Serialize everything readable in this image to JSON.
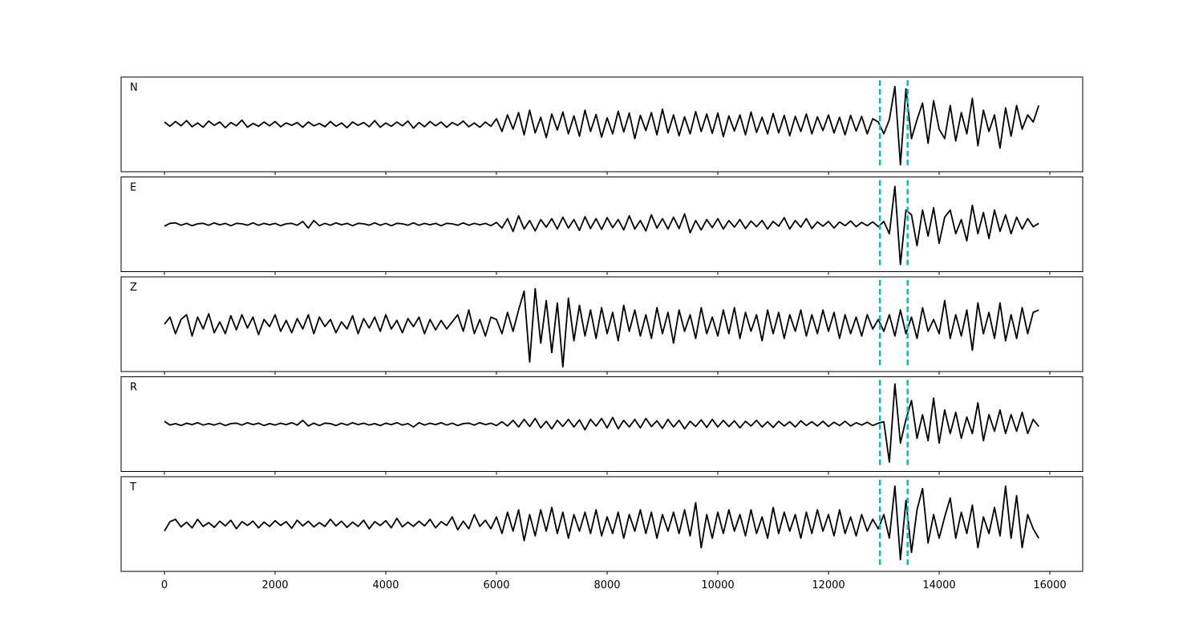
{
  "chart_data": {
    "type": "line",
    "layout": "stacked",
    "xlim": [
      -783,
      16594
    ],
    "xticks": [
      0,
      2000,
      4000,
      6000,
      8000,
      10000,
      12000,
      14000,
      16000
    ],
    "ylim": [
      -1,
      1
    ],
    "vlines": [
      12930,
      13430
    ],
    "vline_color": "#00bfbf",
    "x": [
      0,
      100,
      200,
      300,
      400,
      500,
      600,
      700,
      800,
      900,
      1000,
      1100,
      1200,
      1300,
      1400,
      1500,
      1600,
      1700,
      1800,
      1900,
      2000,
      2100,
      2200,
      2300,
      2400,
      2500,
      2600,
      2700,
      2800,
      2900,
      3000,
      3100,
      3200,
      3300,
      3400,
      3500,
      3600,
      3700,
      3800,
      3900,
      4000,
      4100,
      4200,
      4300,
      4400,
      4500,
      4600,
      4700,
      4800,
      4900,
      5000,
      5100,
      5200,
      5300,
      5400,
      5500,
      5600,
      5700,
      5800,
      5900,
      6000,
      6100,
      6200,
      6300,
      6400,
      6500,
      6600,
      6700,
      6800,
      6900,
      7000,
      7100,
      7200,
      7300,
      7400,
      7500,
      7600,
      7700,
      7800,
      7900,
      8000,
      8100,
      8200,
      8300,
      8400,
      8500,
      8600,
      8700,
      8800,
      8900,
      9000,
      9100,
      9200,
      9300,
      9400,
      9500,
      9600,
      9700,
      9800,
      9900,
      10000,
      10100,
      10200,
      10300,
      10400,
      10500,
      10600,
      10700,
      10800,
      10900,
      11000,
      11100,
      11200,
      11300,
      11400,
      11500,
      11600,
      11700,
      11800,
      11900,
      12000,
      12100,
      12200,
      12300,
      12400,
      12500,
      12600,
      12700,
      12800,
      12900,
      13000,
      13100,
      13200,
      13300,
      13400,
      13500,
      13600,
      13700,
      13800,
      13900,
      14000,
      14100,
      14200,
      14300,
      14400,
      14500,
      14600,
      14700,
      14800,
      14900,
      15000,
      15100,
      15200,
      15300,
      15400,
      15500,
      15600,
      15700,
      15800
    ],
    "series": [
      {
        "name": "N",
        "color": "#000000",
        "values": [
          0.05,
          -0.04,
          0.06,
          -0.03,
          0.08,
          -0.05,
          0.03,
          -0.06,
          0.07,
          -0.02,
          0.05,
          -0.07,
          0.04,
          -0.03,
          0.09,
          -0.06,
          0.02,
          -0.04,
          0.05,
          -0.03,
          0.06,
          -0.05,
          0.03,
          -0.02,
          0.04,
          -0.06,
          0.05,
          -0.03,
          0.02,
          -0.05,
          0.06,
          -0.04,
          0.03,
          -0.07,
          0.05,
          -0.02,
          0.04,
          -0.05,
          0.08,
          -0.06,
          0.03,
          -0.04,
          0.05,
          -0.03,
          0.07,
          -0.08,
          0.04,
          -0.05,
          0.06,
          -0.03,
          0.05,
          -0.06,
          0.04,
          -0.02,
          0.07,
          -0.05,
          0.03,
          -0.06,
          0.05,
          -0.04,
          0.12,
          -0.15,
          0.2,
          -0.1,
          0.25,
          -0.22,
          0.3,
          -0.18,
          0.15,
          -0.28,
          0.22,
          -0.12,
          0.26,
          -0.2,
          0.18,
          -0.25,
          0.3,
          -0.15,
          0.21,
          -0.27,
          0.14,
          -0.2,
          0.28,
          -0.16,
          0.24,
          -0.3,
          0.19,
          -0.13,
          0.25,
          -0.22,
          0.32,
          -0.18,
          0.2,
          -0.24,
          0.16,
          -0.2,
          0.27,
          -0.15,
          0.22,
          -0.19,
          0.24,
          -0.26,
          0.18,
          -0.14,
          0.2,
          -0.22,
          0.26,
          -0.17,
          0.15,
          -0.2,
          0.23,
          -0.18,
          0.19,
          -0.24,
          0.17,
          -0.15,
          0.22,
          -0.2,
          0.16,
          -0.13,
          0.2,
          -0.18,
          0.15,
          -0.22,
          0.19,
          -0.14,
          0.17,
          -0.2,
          0.12,
          0.05,
          -0.2,
          0.1,
          0.8,
          -0.85,
          0.75,
          -0.3,
          0.1,
          0.45,
          -0.4,
          0.5,
          -0.1,
          -0.3,
          0.4,
          -0.35,
          0.25,
          -0.2,
          0.55,
          -0.45,
          0.3,
          -0.15,
          0.2,
          -0.5,
          0.35,
          -0.25,
          0.4,
          -0.1,
          0.2,
          0.05,
          0.4
        ]
      },
      {
        "name": "E",
        "color": "#000000",
        "values": [
          -0.04,
          0.02,
          0.03,
          -0.02,
          0.02,
          -0.03,
          0.01,
          0.02,
          -0.02,
          0.03,
          -0.01,
          0.02,
          -0.03,
          0.02,
          0.01,
          -0.02,
          0.03,
          -0.02,
          0.02,
          -0.01,
          0.02,
          -0.03,
          0.01,
          0.02,
          -0.02,
          0.06,
          -0.08,
          0.08,
          -0.03,
          0.02,
          -0.02,
          0.03,
          -0.01,
          0.02,
          -0.03,
          0.02,
          0.01,
          -0.02,
          0.03,
          -0.02,
          0.02,
          -0.03,
          0.02,
          0.01,
          -0.02,
          0.03,
          -0.02,
          0.02,
          -0.01,
          0.02,
          -0.03,
          0.02,
          0.01,
          -0.02,
          0.03,
          -0.02,
          0.02,
          -0.01,
          0.02,
          -0.03,
          0.04,
          -0.08,
          0.12,
          -0.15,
          0.18,
          -0.1,
          0.08,
          -0.14,
          0.1,
          -0.06,
          0.12,
          -0.1,
          0.15,
          -0.08,
          0.1,
          -0.13,
          0.16,
          -0.09,
          0.12,
          -0.11,
          0.14,
          -0.07,
          0.1,
          -0.12,
          0.18,
          -0.1,
          0.08,
          -0.14,
          0.2,
          -0.08,
          0.12,
          -0.1,
          0.15,
          -0.09,
          0.22,
          -0.18,
          0.08,
          -0.12,
          0.1,
          -0.07,
          0.12,
          -0.1,
          0.08,
          -0.06,
          0.1,
          -0.09,
          0.07,
          -0.05,
          0.08,
          -0.1,
          0.06,
          -0.04,
          0.14,
          -0.1,
          0.08,
          -0.06,
          0.12,
          -0.09,
          0.05,
          -0.04,
          0.06,
          -0.08,
          0.05,
          -0.03,
          0.07,
          -0.05,
          0.04,
          -0.03,
          0.05,
          -0.05,
          0.06,
          -0.2,
          0.8,
          -0.85,
          0.3,
          0.2,
          -0.45,
          0.3,
          -0.25,
          0.35,
          -0.4,
          0.15,
          0.3,
          -0.2,
          0.1,
          -0.35,
          0.4,
          -0.2,
          0.25,
          -0.3,
          0.3,
          -0.15,
          0.2,
          -0.2,
          0.15,
          -0.1,
          0.12,
          -0.05,
          0.02
        ]
      },
      {
        "name": "Z",
        "color": "#000000",
        "values": [
          0.0,
          0.15,
          -0.2,
          0.1,
          0.2,
          -0.25,
          0.15,
          -0.1,
          0.22,
          -0.18,
          0.05,
          -0.2,
          0.18,
          -0.12,
          0.2,
          -0.08,
          0.15,
          -0.22,
          0.1,
          -0.05,
          0.2,
          -0.15,
          0.08,
          -0.18,
          0.12,
          -0.1,
          0.2,
          -0.2,
          0.15,
          -0.05,
          0.1,
          -0.18,
          0.05,
          -0.1,
          0.18,
          -0.2,
          0.12,
          -0.08,
          0.15,
          -0.15,
          0.2,
          -0.1,
          0.08,
          -0.18,
          0.12,
          -0.05,
          0.15,
          -0.2,
          0.1,
          -0.12,
          0.08,
          -0.1,
          0.05,
          0.2,
          -0.15,
          0.3,
          -0.2,
          0.1,
          -0.25,
          0.15,
          0.1,
          -0.2,
          0.25,
          -0.15,
          0.3,
          0.7,
          -0.8,
          0.75,
          -0.4,
          0.5,
          -0.6,
          0.45,
          -0.9,
          0.55,
          -0.35,
          0.4,
          -0.25,
          0.3,
          -0.3,
          0.35,
          -0.2,
          0.25,
          -0.35,
          0.4,
          -0.15,
          0.3,
          -0.25,
          0.2,
          -0.3,
          0.35,
          -0.2,
          0.25,
          -0.4,
          0.3,
          -0.15,
          0.2,
          -0.3,
          0.35,
          -0.2,
          0.15,
          -0.25,
          0.3,
          -0.2,
          0.35,
          -0.3,
          0.25,
          -0.15,
          0.2,
          -0.35,
          0.3,
          -0.2,
          0.25,
          -0.3,
          0.2,
          -0.15,
          0.3,
          -0.25,
          0.2,
          -0.2,
          0.3,
          -0.15,
          0.25,
          -0.3,
          0.2,
          -0.2,
          0.15,
          -0.25,
          0.2,
          -0.1,
          0.1,
          -0.15,
          0.2,
          -0.25,
          0.3,
          -0.2,
          0.15,
          -0.3,
          0.35,
          -0.15,
          0.1,
          -0.2,
          0.5,
          -0.3,
          0.2,
          -0.25,
          0.3,
          -0.55,
          0.45,
          -0.2,
          0.25,
          -0.3,
          0.45,
          -0.35,
          0.2,
          -0.3,
          0.35,
          -0.2,
          0.25,
          0.3
        ]
      },
      {
        "name": "R",
        "color": "#000000",
        "values": [
          0.06,
          -0.02,
          0.01,
          -0.03,
          0.02,
          -0.01,
          0.03,
          -0.02,
          0.01,
          -0.02,
          0.02,
          -0.03,
          0.01,
          0.02,
          -0.02,
          0.03,
          -0.01,
          0.02,
          -0.03,
          0.01,
          -0.02,
          0.02,
          -0.01,
          0.03,
          -0.02,
          0.08,
          -0.04,
          0.02,
          -0.03,
          0.02,
          0.01,
          -0.03,
          0.02,
          -0.02,
          0.03,
          -0.01,
          0.02,
          -0.02,
          0.01,
          -0.03,
          0.02,
          -0.01,
          0.03,
          -0.02,
          0.01,
          -0.06,
          0.03,
          -0.02,
          0.02,
          -0.01,
          0.03,
          -0.02,
          0.02,
          -0.03,
          0.01,
          0.02,
          -0.02,
          0.03,
          -0.01,
          0.02,
          -0.03,
          0.05,
          -0.04,
          0.08,
          -0.06,
          0.1,
          -0.05,
          0.12,
          -0.08,
          0.06,
          -0.1,
          0.08,
          -0.05,
          0.1,
          -0.06,
          0.09,
          -0.12,
          0.1,
          -0.04,
          0.12,
          -0.08,
          0.14,
          -0.1,
          0.08,
          -0.06,
          0.1,
          -0.08,
          0.12,
          -0.05,
          0.07,
          -0.09,
          0.1,
          -0.06,
          0.08,
          -0.1,
          0.06,
          -0.05,
          0.09,
          -0.07,
          0.1,
          -0.06,
          0.08,
          -0.05,
          0.07,
          -0.08,
          0.06,
          -0.04,
          0.08,
          -0.06,
          0.05,
          -0.07,
          0.06,
          -0.04,
          0.05,
          -0.06,
          0.07,
          -0.03,
          0.05,
          -0.04,
          0.06,
          -0.05,
          0.04,
          -0.03,
          0.06,
          -0.04,
          0.03,
          -0.02,
          0.04,
          -0.03,
          0.02,
          0.05,
          -0.8,
          0.85,
          -0.4,
          0.1,
          0.5,
          -0.3,
          0.2,
          -0.35,
          0.55,
          -0.4,
          0.3,
          -0.2,
          0.25,
          -0.3,
          0.15,
          -0.2,
          0.45,
          -0.35,
          0.2,
          -0.15,
          0.3,
          -0.2,
          0.2,
          -0.15,
          0.25,
          -0.2,
          0.1,
          -0.05
        ]
      },
      {
        "name": "T",
        "color": "#000000",
        "values": [
          -0.15,
          0.05,
          0.1,
          -0.06,
          0.04,
          -0.08,
          0.1,
          -0.05,
          0.03,
          -0.07,
          0.06,
          -0.04,
          0.08,
          -0.1,
          0.05,
          -0.03,
          0.06,
          -0.08,
          0.04,
          -0.05,
          0.07,
          -0.03,
          0.05,
          -0.09,
          0.08,
          -0.04,
          0.06,
          -0.06,
          0.03,
          -0.05,
          0.1,
          -0.04,
          0.06,
          -0.07,
          0.04,
          -0.05,
          0.08,
          -0.1,
          0.05,
          -0.03,
          0.07,
          -0.08,
          0.12,
          -0.06,
          0.04,
          -0.05,
          0.06,
          -0.04,
          0.1,
          -0.08,
          0.05,
          -0.03,
          0.15,
          -0.12,
          0.06,
          -0.1,
          0.2,
          -0.05,
          0.08,
          -0.1,
          0.15,
          -0.2,
          0.25,
          -0.15,
          0.3,
          -0.35,
          0.2,
          -0.25,
          0.3,
          -0.15,
          0.35,
          -0.2,
          0.25,
          -0.3,
          0.2,
          -0.15,
          0.25,
          -0.2,
          0.3,
          -0.25,
          0.15,
          -0.2,
          0.25,
          -0.3,
          0.2,
          -0.15,
          0.3,
          -0.2,
          0.25,
          -0.3,
          0.2,
          -0.15,
          0.25,
          -0.2,
          0.3,
          -0.25,
          0.45,
          -0.5,
          0.2,
          -0.3,
          0.25,
          -0.2,
          0.3,
          -0.15,
          0.2,
          -0.25,
          0.3,
          -0.2,
          0.15,
          -0.3,
          0.35,
          -0.2,
          0.25,
          -0.15,
          0.2,
          -0.3,
          0.25,
          -0.2,
          0.3,
          -0.15,
          0.2,
          -0.25,
          0.3,
          -0.2,
          0.15,
          -0.25,
          0.2,
          -0.15,
          0.1,
          -0.1,
          0.2,
          -0.3,
          0.8,
          -0.75,
          0.5,
          -0.6,
          0.3,
          0.75,
          -0.4,
          0.2,
          -0.3,
          0.15,
          0.55,
          -0.3,
          0.25,
          -0.2,
          0.4,
          -0.5,
          0.15,
          -0.2,
          0.35,
          -0.25,
          0.8,
          -0.3,
          0.6,
          -0.5,
          0.2,
          -0.1,
          -0.3
        ]
      }
    ]
  }
}
